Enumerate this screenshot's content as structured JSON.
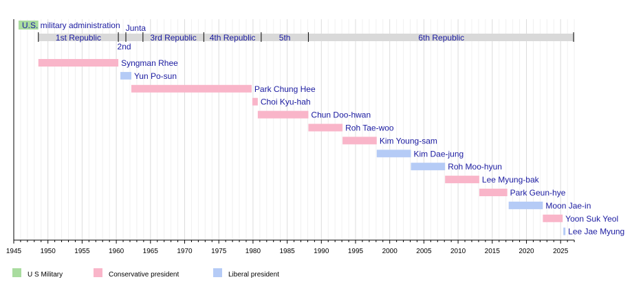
{
  "chart_data": {
    "type": "timeline",
    "xlim": [
      1945,
      2027
    ],
    "x_ticks": [
      1945,
      1950,
      1955,
      1960,
      1965,
      1970,
      1975,
      1980,
      1985,
      1990,
      1995,
      2000,
      2005,
      2010,
      2015,
      2020,
      2025
    ],
    "grid": true,
    "colors": {
      "us_military": "#a9dc9f",
      "conservative": "#f9b5c9",
      "liberal": "#b5cbf6",
      "republic": "#d9d9d9",
      "text": "#1a1aa0"
    },
    "occupation": {
      "label": "U.S. military administration",
      "start": 1945.7,
      "end": 1948.6,
      "type": "us_military"
    },
    "republics": [
      {
        "label": "1st Republic",
        "start": 1948.6,
        "end": 1960.3
      },
      {
        "label": "2nd",
        "start": 1960.3,
        "end": 1961.4
      },
      {
        "label": "Junta",
        "start": 1961.4,
        "end": 1963.9
      },
      {
        "label": "3rd Republic",
        "start": 1963.9,
        "end": 1972.8
      },
      {
        "label": "4th Republic",
        "start": 1972.8,
        "end": 1981.2
      },
      {
        "label": "5th",
        "start": 1981.2,
        "end": 1988.1
      },
      {
        "label": "6th Republic",
        "start": 1988.1,
        "end": 2027
      }
    ],
    "presidents": [
      {
        "name": "Syngman Rhee",
        "start": 1948.6,
        "end": 1960.3,
        "type": "conservative"
      },
      {
        "name": "Yun Po-sun",
        "start": 1960.6,
        "end": 1962.2,
        "type": "liberal"
      },
      {
        "name": "Park Chung Hee",
        "start": 1962.2,
        "end": 1979.8,
        "type": "conservative"
      },
      {
        "name": "Choi Kyu-hah",
        "start": 1979.9,
        "end": 1980.7,
        "type": "conservative"
      },
      {
        "name": "Chun Doo-hwan",
        "start": 1980.7,
        "end": 1988.1,
        "type": "conservative"
      },
      {
        "name": "Roh Tae-woo",
        "start": 1988.1,
        "end": 1993.1,
        "type": "conservative"
      },
      {
        "name": "Kim Young-sam",
        "start": 1993.1,
        "end": 1998.1,
        "type": "conservative"
      },
      {
        "name": "Kim Dae-jung",
        "start": 1998.1,
        "end": 2003.1,
        "type": "liberal"
      },
      {
        "name": "Roh Moo-hyun",
        "start": 2003.1,
        "end": 2008.1,
        "type": "liberal"
      },
      {
        "name": "Lee Myung-bak",
        "start": 2008.1,
        "end": 2013.1,
        "type": "conservative"
      },
      {
        "name": "Park Geun-hye",
        "start": 2013.1,
        "end": 2017.2,
        "type": "conservative"
      },
      {
        "name": "Moon Jae-in",
        "start": 2017.4,
        "end": 2022.4,
        "type": "liberal"
      },
      {
        "name": "Yoon Suk Yeol",
        "start": 2022.4,
        "end": 2025.3,
        "type": "conservative"
      },
      {
        "name": "Lee Jae Myung",
        "start": 2025.4,
        "end": 2025.7,
        "type": "liberal"
      }
    ],
    "legend": [
      {
        "label": "U S Military",
        "type": "us_military"
      },
      {
        "label": "Conservative president",
        "type": "conservative"
      },
      {
        "label": "Liberal president",
        "type": "liberal"
      }
    ],
    "legend_position": "bottom-left"
  }
}
